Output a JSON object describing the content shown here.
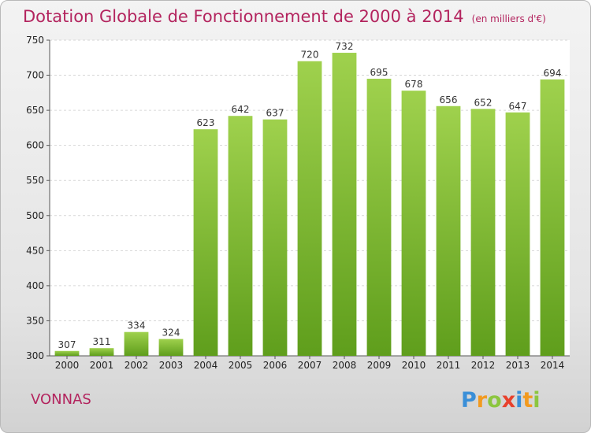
{
  "header": {
    "title": "Dotation Globale de Fonctionnement de 2000 à 2014",
    "unit": "(en milliers d'€)"
  },
  "footer": {
    "place": "VONNAS",
    "logo_text": "Proxiti"
  },
  "colors": {
    "accent": "#b3245e",
    "bar_light": "#9fd14d",
    "bar_dark": "#5f9e1c"
  },
  "chart_data": {
    "type": "bar",
    "categories": [
      "2000",
      "2001",
      "2002",
      "2003",
      "2004",
      "2005",
      "2006",
      "2007",
      "2008",
      "2009",
      "2010",
      "2011",
      "2012",
      "2013",
      "2014"
    ],
    "values": [
      307,
      311,
      334,
      324,
      623,
      642,
      637,
      720,
      732,
      695,
      678,
      656,
      652,
      647,
      694
    ],
    "ylim": [
      300,
      750
    ],
    "yticks": [
      300,
      350,
      400,
      450,
      500,
      550,
      600,
      650,
      700,
      750
    ],
    "grid": true
  }
}
